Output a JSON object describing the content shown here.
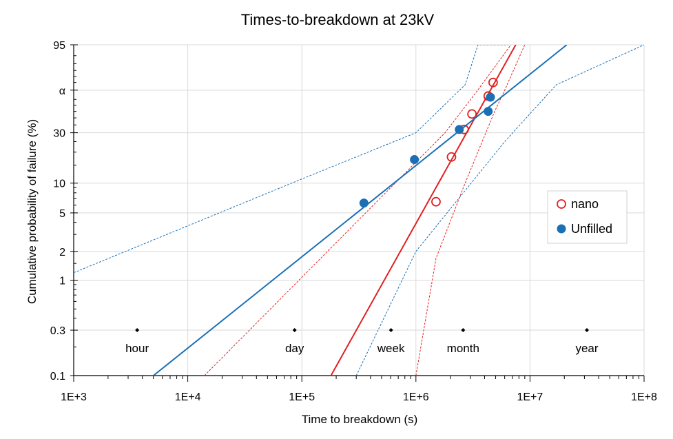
{
  "chart_data": {
    "type": "scatter",
    "title": "Times-to-breakdown at 23kV",
    "xlabel": "Time to breakdown (s)",
    "ylabel": "Cumulative probability of failure (%)",
    "x_scale": "log10",
    "y_scale": "weibull",
    "xlim": [
      1000,
      100000000
    ],
    "ylim": [
      0.1,
      95
    ],
    "x_ticks": [
      {
        "value": 1000,
        "label": "1E+3"
      },
      {
        "value": 10000,
        "label": "1E+4"
      },
      {
        "value": 100000,
        "label": "1E+5"
      },
      {
        "value": 1000000,
        "label": "1E+6"
      },
      {
        "value": 10000000,
        "label": "1E+7"
      },
      {
        "value": 100000000,
        "label": "1E+8"
      }
    ],
    "y_ticks": [
      {
        "value": 0.1,
        "label": "0.1"
      },
      {
        "value": 0.3,
        "label": "0.3"
      },
      {
        "value": 1,
        "label": "1"
      },
      {
        "value": 2,
        "label": "2"
      },
      {
        "value": 5,
        "label": "5"
      },
      {
        "value": 10,
        "label": "10"
      },
      {
        "value": 30,
        "label": "30"
      },
      {
        "value": 63.2,
        "label": "α"
      },
      {
        "value": 95,
        "label": "95"
      }
    ],
    "grid": true,
    "legend_position": "right",
    "series": [
      {
        "name": "nano",
        "color": "#e02020",
        "marker": "open-circle",
        "points": [
          {
            "x": 1500000,
            "y": 6.5
          },
          {
            "x": 2050000,
            "y": 18
          },
          {
            "x": 2650000,
            "y": 32
          },
          {
            "x": 3100000,
            "y": 43
          },
          {
            "x": 4300000,
            "y": 58
          },
          {
            "x": 4750000,
            "y": 70
          }
        ],
        "fit": {
          "x": [
            180000,
            7500000
          ],
          "y": [
            0.1,
            95
          ]
        },
        "bounds": [
          {
            "x": [
              14000,
              1800000,
              3300000,
              6800000
            ],
            "y": [
              0.1,
              30,
              60,
              95
            ]
          },
          {
            "x": [
              1000000,
              1500000,
              2700000,
              4900000,
              6000000,
              9000000
            ],
            "y": [
              0.1,
              1.7,
              10,
              45,
              63.2,
              95
            ]
          }
        ]
      },
      {
        "name": "Unfilled",
        "color": "#1a6fb5",
        "marker": "filled-circle",
        "points": [
          {
            "x": 350000,
            "y": 6.3
          },
          {
            "x": 970000,
            "y": 17
          },
          {
            "x": 2400000,
            "y": 32
          },
          {
            "x": 4300000,
            "y": 45
          },
          {
            "x": 4500000,
            "y": 57
          }
        ],
        "fit": {
          "x": [
            5000,
            21000000
          ],
          "y": [
            0.1,
            95
          ]
        },
        "bounds": [
          {
            "x": [
              1000,
              100000,
              1000000,
              2700000,
              3500000,
              6500000
            ],
            "y": [
              1.2,
              11,
              30,
              68,
              95,
              95
            ]
          },
          {
            "x": [
              300000,
              1000000,
              6000000,
              17000000,
              100000000
            ],
            "y": [
              0.1,
              2,
              25,
              68,
              95
            ]
          }
        ]
      }
    ],
    "reference_lines": [
      {
        "label": "hour",
        "x": 3600,
        "y": 0.3
      },
      {
        "label": "day",
        "x": 86400,
        "y": 0.3
      },
      {
        "label": "week",
        "x": 604800,
        "y": 0.3
      },
      {
        "label": "month",
        "x": 2592000,
        "y": 0.3
      },
      {
        "label": "year",
        "x": 31536000,
        "y": 0.3
      }
    ]
  }
}
